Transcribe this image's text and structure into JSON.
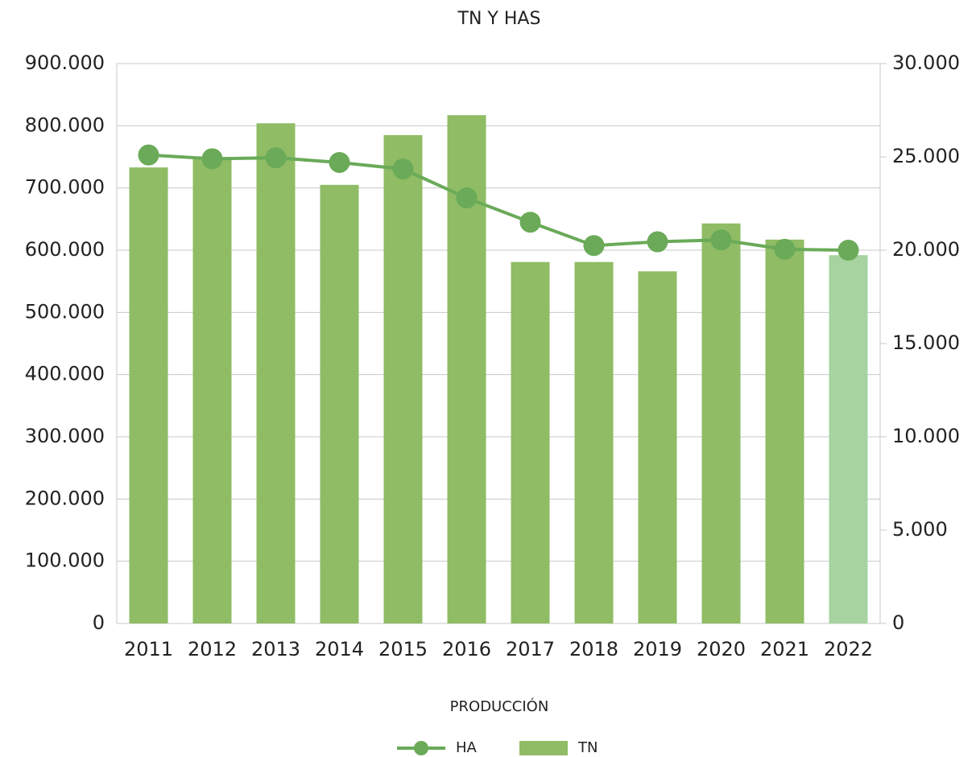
{
  "chart_data": {
    "type": "combo",
    "title": "TN Y HAS",
    "x_label": "PRODUCCIÓN",
    "categories": [
      "2011",
      "2012",
      "2013",
      "2014",
      "2015",
      "2016",
      "2017",
      "2018",
      "2019",
      "2020",
      "2021",
      "2022"
    ],
    "series": [
      {
        "name": "HA",
        "type": "line",
        "axis": "y2",
        "color": "#6aaa58",
        "values": [
          25100,
          24900,
          24950,
          24700,
          24350,
          22800,
          21500,
          20250,
          20450,
          20550,
          20050,
          20000
        ]
      },
      {
        "name": "TN",
        "type": "bar",
        "color": "#8fbc64",
        "point_colors": [
          "#8fbc64",
          "#8fbc64",
          "#8fbc64",
          "#8fbc64",
          "#8fbc64",
          "#8fbc64",
          "#8fbc64",
          "#8fbc64",
          "#8fbc64",
          "#8fbc64",
          "#8fbc64",
          "#a6d3a0"
        ],
        "values": [
          733000,
          747000,
          804000,
          705000,
          785000,
          817000,
          581000,
          581000,
          566000,
          643000,
          617000,
          592000
        ]
      }
    ],
    "ylim": [
      0,
      900000
    ],
    "yticks": [
      0,
      {
        "value": 100000,
        "label": "100.000"
      },
      {
        "value": 200000,
        "label": "200.000"
      },
      {
        "value": 300000,
        "label": "300.000"
      },
      {
        "value": 400000,
        "label": "400.000"
      },
      {
        "value": 500000,
        "label": "500.000"
      },
      {
        "value": 600000,
        "label": "600.000"
      },
      {
        "value": 700000,
        "label": "700.000"
      },
      {
        "value": 800000,
        "label": "800.000"
      },
      {
        "value": 900000,
        "label": "900.000"
      }
    ],
    "y2lim": [
      0,
      30000
    ],
    "y2ticks": [
      0,
      {
        "value": 5000,
        "label": "5.000"
      },
      {
        "value": 10000,
        "label": "10.000"
      },
      {
        "value": 15000,
        "label": "15.000"
      },
      {
        "value": 20000,
        "label": "20.000"
      },
      {
        "value": 25000,
        "label": "25.000"
      },
      {
        "value": 30000,
        "label": "30.000"
      }
    ],
    "grid": true,
    "legend": "bottom"
  }
}
